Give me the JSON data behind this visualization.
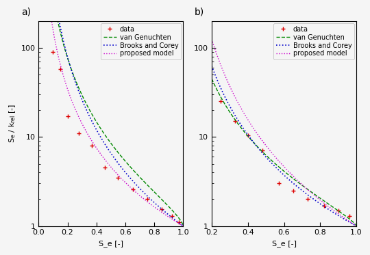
{
  "panel_a": {
    "label": "a)",
    "xlim": [
      0.0,
      1.0
    ],
    "ylim": [
      1.0,
      200.0
    ],
    "xlabel": "S_e [-]",
    "ylabel": "S_e / k_rel [-]",
    "xticks": [
      0.0,
      0.2,
      0.4,
      0.6,
      0.8,
      1.0
    ],
    "data_x": [
      0.1,
      0.15,
      0.2,
      0.28,
      0.37,
      0.46,
      0.55,
      0.65,
      0.75,
      0.85,
      0.92,
      0.97
    ],
    "data_y": [
      90.0,
      58.0,
      17.0,
      11.0,
      8.0,
      4.5,
      3.5,
      2.6,
      2.0,
      1.55,
      1.3,
      1.1
    ],
    "vg_n": 3.5,
    "bc_lam": 2.8,
    "pm_b": 3.2
  },
  "panel_b": {
    "label": "b)",
    "xlim": [
      0.2,
      1.0
    ],
    "ylim": [
      1.0,
      200.0
    ],
    "xlabel": "S_e [-]",
    "xticks": [
      0.2,
      0.4,
      0.6,
      0.8,
      1.0
    ],
    "data_x": [
      0.25,
      0.33,
      0.4,
      0.48,
      0.57,
      0.65,
      0.73,
      0.82,
      0.9,
      0.96
    ],
    "data_y": [
      25.0,
      15.0,
      10.5,
      7.0,
      3.0,
      2.5,
      2.0,
      1.7,
      1.5,
      1.3
    ],
    "vg_n": 4.5,
    "bc_lam": 3.5,
    "pm_b": 4.0
  },
  "color_vg": "#008800",
  "color_bc": "#0000cc",
  "color_pm": "#cc00cc",
  "color_data": "#dd0000",
  "legend_labels": [
    "data",
    "van Genuchten",
    "Brooks and Corey",
    "proposed model"
  ],
  "bg_color": "#f5f5f5",
  "figsize": [
    5.4,
    3.73
  ],
  "dpi": 100
}
